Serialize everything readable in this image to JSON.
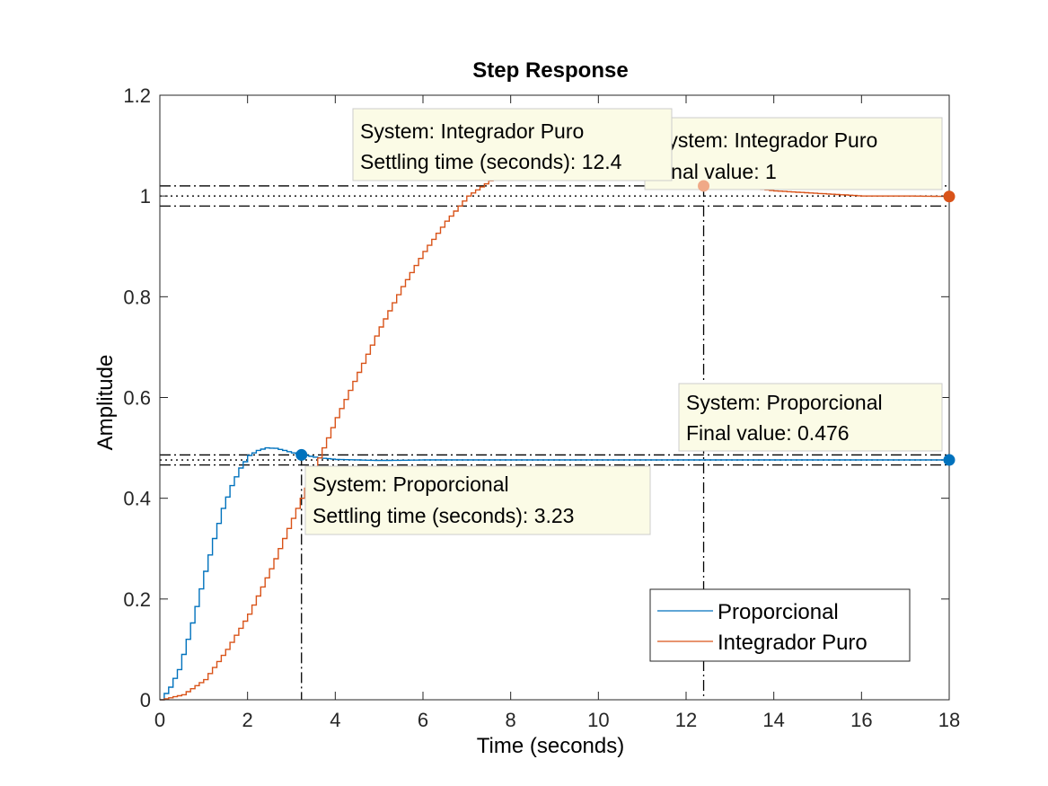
{
  "chart_data": {
    "type": "line",
    "title": "Step Response",
    "xlabel": "Time (seconds)",
    "ylabel": "Amplitude",
    "xlim": [
      0,
      18
    ],
    "ylim": [
      0,
      1.2
    ],
    "xticks": [
      "0",
      "2",
      "4",
      "6",
      "8",
      "10",
      "12",
      "14",
      "16",
      "18"
    ],
    "yticks": [
      "0",
      "0.2",
      "0.4",
      "0.6",
      "0.8",
      "1",
      "1.2"
    ],
    "grid": false,
    "legend_position": "bottom-right",
    "series": [
      {
        "name": "Proporcional",
        "color": "#0072BD",
        "style": "staircase",
        "x": [
          0,
          0.2,
          0.4,
          0.6,
          0.8,
          1.0,
          1.2,
          1.4,
          1.6,
          1.8,
          2.0,
          2.2,
          2.4,
          2.6,
          2.8,
          3.0,
          3.23,
          3.6,
          4.0,
          5.0,
          6.0,
          8.0,
          10.0,
          12.0,
          14.0,
          16.0,
          18.0
        ],
        "y": [
          0,
          0.025,
          0.06,
          0.12,
          0.185,
          0.255,
          0.32,
          0.38,
          0.425,
          0.46,
          0.485,
          0.495,
          0.5,
          0.499,
          0.495,
          0.49,
          0.486,
          0.48,
          0.477,
          0.475,
          0.476,
          0.476,
          0.476,
          0.476,
          0.476,
          0.476,
          0.476
        ]
      },
      {
        "name": "Integrador Puro",
        "color": "#D95319",
        "style": "staircase",
        "x": [
          0,
          0.5,
          1.0,
          1.5,
          2.0,
          2.5,
          3.0,
          3.5,
          4.0,
          4.5,
          5.0,
          5.5,
          6.0,
          6.5,
          7.0,
          7.5,
          8.0,
          9.0,
          10.0,
          11.0,
          12.0,
          13.0,
          14.0,
          15.0,
          16.0,
          17.0,
          18.0
        ],
        "y": [
          0,
          0.01,
          0.04,
          0.1,
          0.17,
          0.26,
          0.36,
          0.46,
          0.56,
          0.65,
          0.74,
          0.82,
          0.89,
          0.95,
          1.0,
          1.03,
          1.045,
          1.055,
          1.05,
          1.04,
          1.03,
          1.02,
          1.01,
          1.005,
          1.0,
          1.0,
          0.999
        ]
      }
    ],
    "reference_lines": {
      "horizontal_dashdot": [
        0.98,
        1.02,
        0.466,
        0.486
      ],
      "horizontal_dotted": [
        1.0,
        0.476
      ],
      "vertical_dashdot": [
        3.23,
        12.4
      ]
    },
    "markers": [
      {
        "series": "Proporcional",
        "x": 3.23,
        "y": 0.486,
        "color": "#0072BD"
      },
      {
        "series": "Proporcional",
        "x": 18,
        "y": 0.476,
        "color": "#0072BD"
      },
      {
        "series": "Integrador Puro",
        "x": 12.4,
        "y": 1.02,
        "color": "#F0A987"
      },
      {
        "series": "Integrador Puro",
        "x": 18,
        "y": 0.999,
        "color": "#D95319"
      }
    ],
    "annotations": [
      {
        "id": "ip_settle",
        "lines": [
          "System: Integrador Puro",
          "Settling time (seconds): 12.4"
        ]
      },
      {
        "id": "ip_final",
        "lines": [
          "System: Integrador Puro",
          "Final value: 1"
        ]
      },
      {
        "id": "p_final",
        "lines": [
          "System: Proporcional",
          "Final value: 0.476"
        ]
      },
      {
        "id": "p_settle",
        "lines": [
          "System: Proporcional",
          "Settling time (seconds): 3.23"
        ]
      }
    ]
  }
}
